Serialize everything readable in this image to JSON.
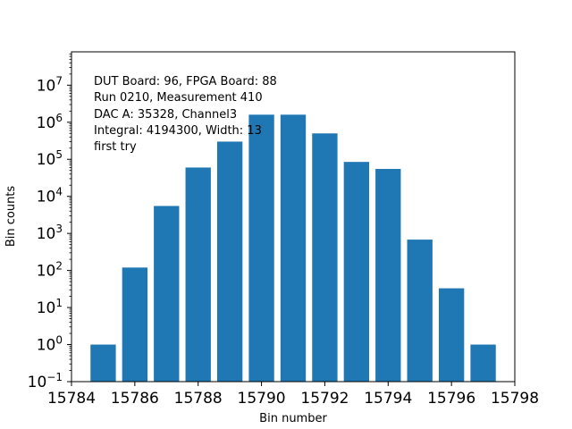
{
  "chart_data": {
    "type": "bar",
    "yscale": "log",
    "title": "",
    "xlabel": "Bin number",
    "ylabel": "Bin counts",
    "xlim": [
      15784,
      15798
    ],
    "ylim_exponents": [
      -1,
      7.9
    ],
    "bar_color": "#1f77b4",
    "bar_width": 0.8,
    "x": [
      15785,
      15786,
      15787,
      15788,
      15789,
      15790,
      15791,
      15792,
      15793,
      15794,
      15795,
      15796,
      15797
    ],
    "values": [
      1,
      120,
      5500,
      60000,
      300000,
      1600000,
      1600000,
      500000,
      85000,
      55000,
      680,
      33,
      1
    ],
    "x_ticks": [
      "15784",
      "15786",
      "15788",
      "15790",
      "15792",
      "15794",
      "15796",
      "15798"
    ],
    "y_ticks": [
      {
        "base": "10",
        "exp": "−1"
      },
      {
        "base": "10",
        "exp": "0"
      },
      {
        "base": "10",
        "exp": "1"
      },
      {
        "base": "10",
        "exp": "2"
      },
      {
        "base": "10",
        "exp": "3"
      },
      {
        "base": "10",
        "exp": "4"
      },
      {
        "base": "10",
        "exp": "5"
      },
      {
        "base": "10",
        "exp": "6"
      },
      {
        "base": "10",
        "exp": "7"
      }
    ],
    "annotation": [
      "DUT Board: 96, FPGA Board: 88",
      "Run 0210, Measurement 410",
      "DAC A: 35328, Channel3",
      "Integral: 4194300, Width: 13",
      "first try"
    ]
  }
}
